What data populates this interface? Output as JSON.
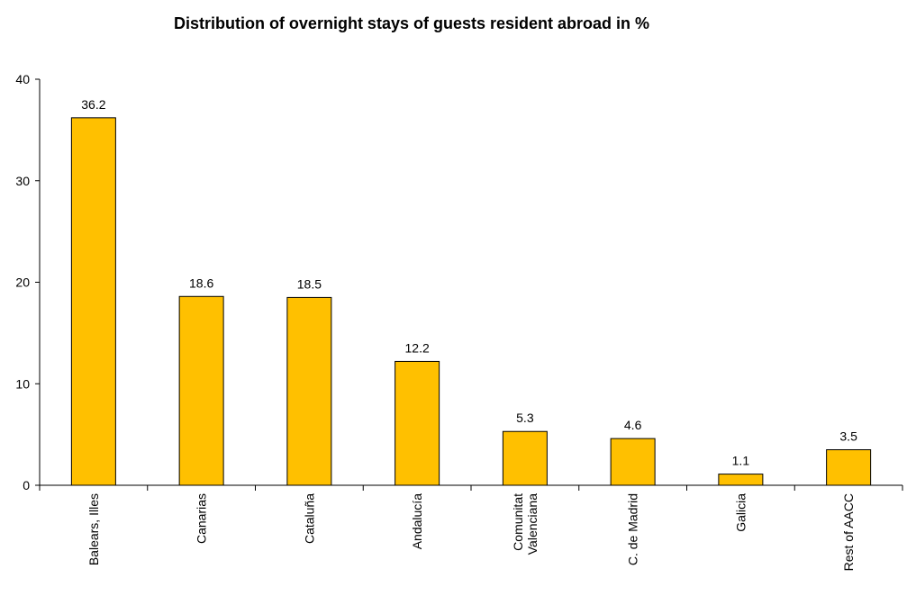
{
  "chart_data": {
    "type": "bar",
    "title": "Distribution of overnight stays of guests resident abroad in %",
    "categories": [
      [
        "Balears, Illes"
      ],
      [
        "Canarias"
      ],
      [
        "Cataluña"
      ],
      [
        "Andalucía"
      ],
      [
        "Comunitat",
        "Valenciana"
      ],
      [
        "C. de Madrid"
      ],
      [
        "Galicia"
      ],
      [
        "Rest of AACC"
      ]
    ],
    "values": [
      36.2,
      18.6,
      18.5,
      12.2,
      5.3,
      4.6,
      1.1,
      3.5
    ],
    "data_labels": [
      "36.2",
      "18.6",
      "18.5",
      "12.2",
      "5.3",
      "4.6",
      "1.1",
      "3.5"
    ],
    "ylim": [
      0,
      40
    ],
    "yticks": [
      0,
      10,
      20,
      30,
      40
    ],
    "ytick_labels": [
      "0",
      "10",
      "20",
      "30",
      "40"
    ],
    "xlabel": "",
    "ylabel": "",
    "grid": false,
    "legend": "none",
    "bar_color": "#FFC000",
    "bar_edge_color": "#000000"
  }
}
